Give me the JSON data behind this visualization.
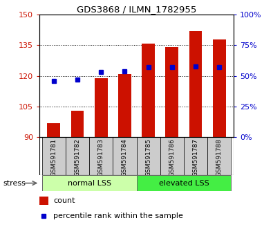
{
  "title": "GDS3868 / ILMN_1782955",
  "categories": [
    "GSM591781",
    "GSM591782",
    "GSM591783",
    "GSM591784",
    "GSM591785",
    "GSM591786",
    "GSM591787",
    "GSM591788"
  ],
  "count_values": [
    97,
    103,
    119,
    121,
    136,
    134,
    142,
    138
  ],
  "percentile_values": [
    46,
    47,
    53,
    54,
    57,
    57,
    58,
    57
  ],
  "bar_bottom": 90,
  "ylim_left": [
    90,
    150
  ],
  "ylim_right": [
    0,
    100
  ],
  "yticks_left": [
    90,
    105,
    120,
    135,
    150
  ],
  "yticks_right": [
    0,
    25,
    50,
    75,
    100
  ],
  "bar_color": "#CC1100",
  "dot_color": "#0000CC",
  "group1_label": "normal LSS",
  "group2_label": "elevated LSS",
  "group1_indices": [
    0,
    1,
    2,
    3
  ],
  "group2_indices": [
    4,
    5,
    6,
    7
  ],
  "group1_color": "#CCFFAA",
  "group2_color": "#44EE44",
  "stress_label": "stress",
  "legend_count": "count",
  "legend_percentile": "percentile rank within the sample",
  "grid_color": "#000000",
  "tick_label_color_left": "#CC1100",
  "tick_label_color_right": "#0000CC",
  "title_color": "#000000",
  "xticklabel_bg": "#CCCCCC",
  "bar_width": 0.55
}
